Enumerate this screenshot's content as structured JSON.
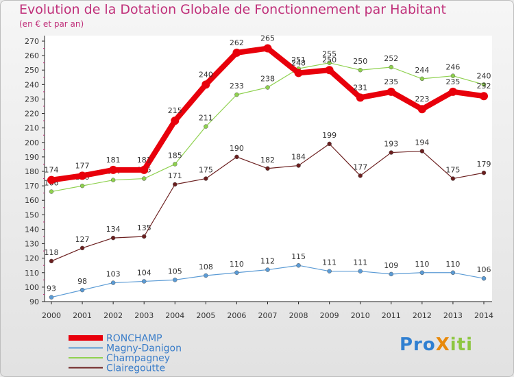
{
  "title": "Evolution de la Dotation Globale de Fonctionnement par Habitant",
  "subtitle": "(en € et par an)",
  "logo": "ProXiti",
  "chart_data": {
    "type": "line",
    "title": "Evolution de la Dotation Globale de Fonctionnement par Habitant",
    "subtitle": "(en € et par an)",
    "x": [
      "2000",
      "2001",
      "2002",
      "2003",
      "2004",
      "2005",
      "2006",
      "2007",
      "2008",
      "2009",
      "2010",
      "2011",
      "2012",
      "2013",
      "2014"
    ],
    "y_ticks": [
      90,
      100,
      110,
      120,
      130,
      140,
      150,
      160,
      170,
      180,
      190,
      200,
      210,
      220,
      230,
      240,
      250,
      260,
      270
    ],
    "ylim": [
      90,
      270
    ],
    "grid": false,
    "legend_position": "bottom-left",
    "series": [
      {
        "name": "RONCHAMP",
        "color": "#e8000b",
        "values": [
          174,
          177,
          181,
          181,
          215,
          240,
          262,
          265,
          248,
          250,
          231,
          235,
          223,
          235,
          232
        ]
      },
      {
        "name": "Magny-Danigon",
        "color": "#5b9bd5",
        "values": [
          93,
          98,
          103,
          104,
          105,
          108,
          110,
          112,
          115,
          111,
          111,
          109,
          110,
          110,
          106
        ]
      },
      {
        "name": "Champagney",
        "color": "#8fd14f",
        "values": [
          166,
          170,
          174,
          175,
          185,
          211,
          233,
          238,
          251,
          255,
          250,
          252,
          244,
          246,
          240
        ]
      },
      {
        "name": "Clairegoutte",
        "color": "#6b1f1f",
        "values": [
          118,
          127,
          134,
          135,
          171,
          175,
          190,
          182,
          184,
          199,
          177,
          193,
          194,
          175,
          179
        ]
      }
    ]
  }
}
